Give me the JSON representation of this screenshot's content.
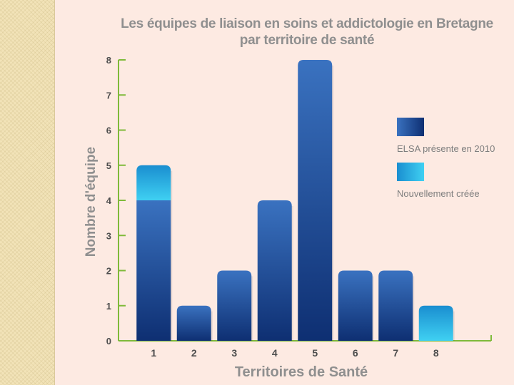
{
  "chart_data": {
    "type": "bar",
    "title": "Les équipes de liaison en soins et addictologie en Bretagne",
    "subtitle": "par territoire de santé",
    "xlabel": "Territoires de Santé",
    "ylabel": "Nombre d'équipe",
    "categories": [
      "1",
      "2",
      "3",
      "4",
      "5",
      "6",
      "7",
      "8"
    ],
    "ylim": [
      0,
      8
    ],
    "yticks": [
      "0",
      "1",
      "2",
      "3",
      "4",
      "5",
      "6",
      "7",
      "8"
    ],
    "stacked": true,
    "series": [
      {
        "name": "ELSA présente en 2010",
        "values": [
          4,
          1,
          2,
          4,
          8,
          2,
          2,
          0
        ],
        "color": "#1f4f9e"
      },
      {
        "name": "Nouvellement créée",
        "values": [
          1,
          0,
          0,
          0,
          0,
          0,
          0,
          1
        ],
        "color": "#22b6e0"
      }
    ],
    "legend": "right",
    "axis_color": "#7fba3a"
  }
}
